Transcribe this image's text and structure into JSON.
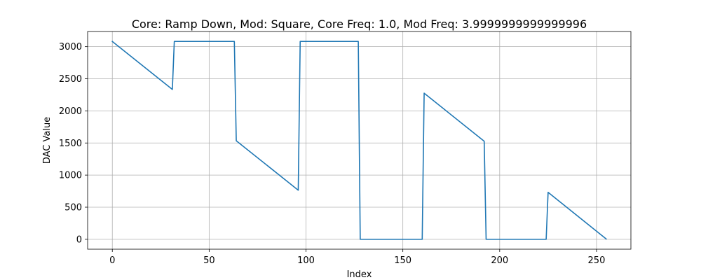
{
  "chart_data": {
    "type": "line",
    "title": "Core: Ramp Down, Mod: Square, Core Freq: 1.0, Mod Freq: 3.9999999999999996",
    "xlabel": "Index",
    "ylabel": "DAC Value",
    "xlim": [
      -12.75,
      267.75
    ],
    "ylim": [
      -154,
      3236
    ],
    "xticks": [
      0,
      50,
      100,
      150,
      200,
      250
    ],
    "yticks": [
      0,
      500,
      1000,
      1500,
      2000,
      2500,
      3000
    ],
    "grid": true,
    "series": [
      {
        "name": "DAC Value",
        "color": "#1f77b4",
        "points": [
          [
            0,
            3081
          ],
          [
            31,
            2334
          ],
          [
            32,
            3081
          ],
          [
            63,
            3081
          ],
          [
            64,
            1534
          ],
          [
            96,
            765
          ],
          [
            97,
            3081
          ],
          [
            127,
            3081
          ],
          [
            128,
            0
          ],
          [
            160,
            0
          ],
          [
            161,
            2276
          ],
          [
            192,
            1527
          ],
          [
            193,
            0
          ],
          [
            224,
            0
          ],
          [
            225,
            732
          ],
          [
            255,
            5
          ]
        ]
      }
    ]
  }
}
